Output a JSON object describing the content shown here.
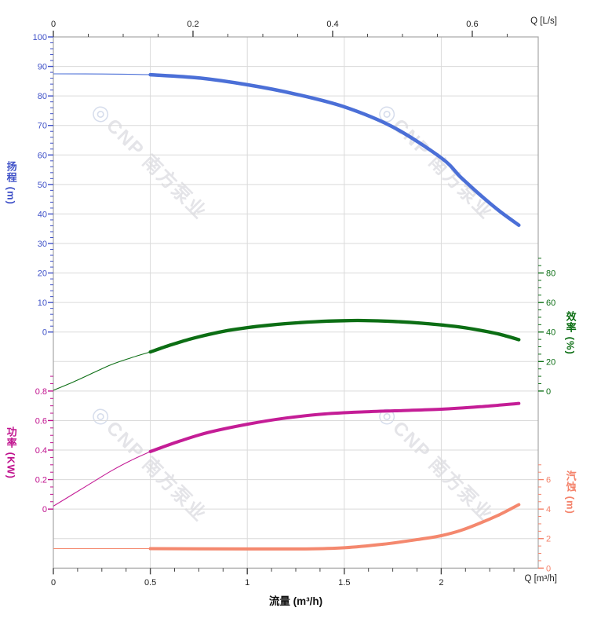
{
  "watermark": {
    "logo_icon": "◎",
    "text": "CNP 南方泵业",
    "color": "#e4e4e8",
    "logo_color": "#d6ddec"
  },
  "chart_data": {
    "type": "line",
    "title": "",
    "x_axis_bottom": {
      "title": "流量 (m³/h)",
      "corner_label": "Q [m³/h]",
      "unit": "m³/h",
      "range": [
        0,
        2.5
      ],
      "ticks": [
        0,
        0.5,
        1,
        1.5,
        2
      ],
      "minor_step": 0.125,
      "grid": true
    },
    "x_axis_top": {
      "corner_label": "Q [L/s]",
      "unit": "L/s",
      "ticks": [
        0,
        0.2,
        0.4,
        0.6
      ],
      "minor_step": 0.05,
      "m3h_per_unit": 3.6
    },
    "y_axes": {
      "head": {
        "title": "扬程 (m)",
        "unit": "m",
        "color": "#3f51c8",
        "curve_color": "#4b6fd7",
        "ticks": [
          100,
          90,
          80,
          70,
          60,
          50,
          40,
          30,
          20,
          10,
          0
        ],
        "minor_step": 2,
        "minor_max": 100,
        "row_zero": 10,
        "units_per_row": 10,
        "side": "left"
      },
      "eff": {
        "title": "效率 (%)",
        "unit": "%",
        "color": "#0c6e14",
        "curve_color": "#0c6e14",
        "ticks": [
          80,
          60,
          40,
          20,
          0
        ],
        "minor_step": 5,
        "minor_max": 90,
        "row_zero": 12,
        "units_per_row": 20,
        "side": "right"
      },
      "power": {
        "title": "功率 (KW)",
        "unit": "KW",
        "color": "#c0128e",
        "curve_color": "#c41d96",
        "ticks": [
          0.8,
          0.6,
          0.4,
          0.2,
          0
        ],
        "minor_step": 0.05,
        "minor_max": 0.9,
        "row_zero": 16,
        "units_per_row": 0.2,
        "side": "left"
      },
      "npsh": {
        "title": "汽蚀 (m)",
        "unit": "m",
        "color": "#f4836b",
        "curve_color": "#f4886e",
        "ticks": [
          6,
          4,
          2,
          0
        ],
        "minor_step": 0.5,
        "minor_max": 7,
        "row_zero": 18,
        "units_per_row": 2,
        "side": "right"
      }
    },
    "series": [
      {
        "name": "head-curve",
        "label": "扬程",
        "axis": "head",
        "split_q": 0.5,
        "thin_width": 1.1,
        "thick_width": 4.5,
        "points": [
          [
            0,
            87.5
          ],
          [
            0.25,
            87.45
          ],
          [
            0.5,
            87.2
          ],
          [
            0.75,
            86.1
          ],
          [
            1.0,
            83.8
          ],
          [
            1.25,
            80.6
          ],
          [
            1.5,
            76.3
          ],
          [
            1.75,
            69.5
          ],
          [
            2.0,
            59.0
          ],
          [
            2.1,
            52.5
          ],
          [
            2.2,
            46.5
          ],
          [
            2.3,
            41.0
          ],
          [
            2.4,
            36.2
          ]
        ]
      },
      {
        "name": "efficiency-curve",
        "label": "效率",
        "axis": "eff",
        "split_q": 0.5,
        "thin_width": 1.1,
        "thick_width": 4.3,
        "points": [
          [
            0,
            0.5
          ],
          [
            0.1,
            6
          ],
          [
            0.2,
            12
          ],
          [
            0.3,
            18
          ],
          [
            0.4,
            22.5
          ],
          [
            0.5,
            26.5
          ],
          [
            0.6,
            31
          ],
          [
            0.7,
            35
          ],
          [
            0.8,
            38.3
          ],
          [
            0.9,
            41
          ],
          [
            1.0,
            43
          ],
          [
            1.1,
            44.5
          ],
          [
            1.2,
            45.7
          ],
          [
            1.35,
            47
          ],
          [
            1.5,
            47.7
          ],
          [
            1.6,
            47.8
          ],
          [
            1.75,
            47.2
          ],
          [
            1.9,
            46
          ],
          [
            2.0,
            44.8
          ],
          [
            2.1,
            43.3
          ],
          [
            2.2,
            41.2
          ],
          [
            2.3,
            38.5
          ],
          [
            2.4,
            34.8
          ]
        ]
      },
      {
        "name": "power-curve",
        "label": "功率",
        "axis": "power",
        "split_q": 0.5,
        "thin_width": 1.1,
        "thick_width": 4.0,
        "points": [
          [
            0,
            0.02
          ],
          [
            0.1,
            0.1
          ],
          [
            0.2,
            0.18
          ],
          [
            0.3,
            0.26
          ],
          [
            0.4,
            0.33
          ],
          [
            0.5,
            0.39
          ],
          [
            0.65,
            0.46
          ],
          [
            0.8,
            0.52
          ],
          [
            1.0,
            0.575
          ],
          [
            1.2,
            0.617
          ],
          [
            1.4,
            0.645
          ],
          [
            1.6,
            0.659
          ],
          [
            1.8,
            0.668
          ],
          [
            2.0,
            0.677
          ],
          [
            2.2,
            0.694
          ],
          [
            2.4,
            0.716
          ]
        ]
      },
      {
        "name": "npsh-curve",
        "label": "汽蚀",
        "axis": "npsh",
        "split_q": 0.5,
        "thin_width": 1.1,
        "thick_width": 4.0,
        "points": [
          [
            0,
            1.32
          ],
          [
            0.5,
            1.32
          ],
          [
            1.0,
            1.3
          ],
          [
            1.3,
            1.3
          ],
          [
            1.5,
            1.38
          ],
          [
            1.7,
            1.62
          ],
          [
            1.9,
            1.98
          ],
          [
            2.0,
            2.2
          ],
          [
            2.1,
            2.55
          ],
          [
            2.2,
            3.05
          ],
          [
            2.3,
            3.62
          ],
          [
            2.4,
            4.3
          ]
        ]
      }
    ],
    "grid": {
      "color": "#dadada",
      "border_color": "#a6a6a6",
      "xtick_color": "#444",
      "xlabel_color": "#222"
    }
  }
}
